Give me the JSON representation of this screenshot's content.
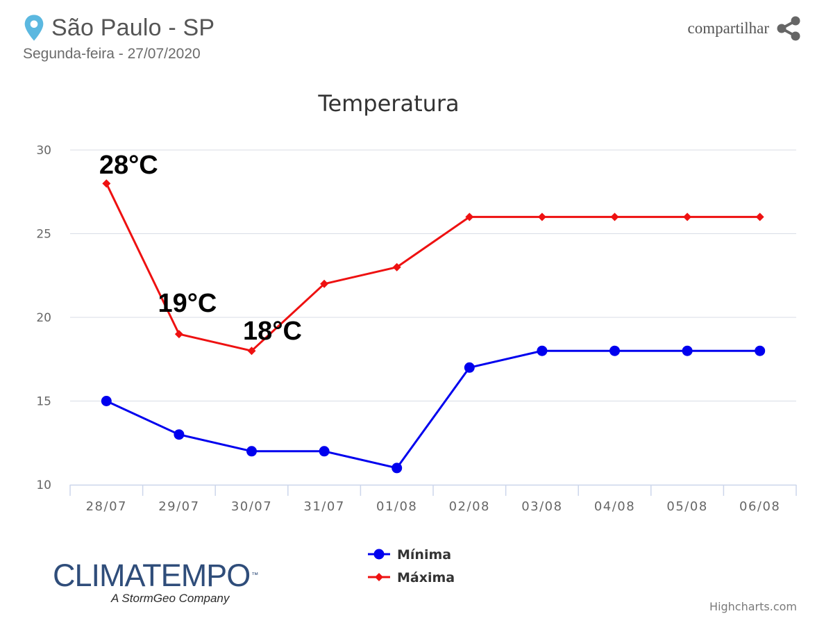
{
  "header": {
    "location": "São Paulo - SP",
    "date": "Segunda-feira - 27/07/2020",
    "pin_icon": "location-pin-icon"
  },
  "share": {
    "label": "compartilhar",
    "icon": "share-icon"
  },
  "chart_data": {
    "type": "line",
    "title": "Temperatura",
    "categories": [
      "28/07",
      "29/07",
      "30/07",
      "31/07",
      "01/08",
      "02/08",
      "03/08",
      "04/08",
      "05/08",
      "06/08"
    ],
    "ylim": [
      10,
      30
    ],
    "yticks": [
      "10",
      "15",
      "20",
      "25",
      "30"
    ],
    "grid": true,
    "legend_placement": "bottom-center",
    "series": [
      {
        "name": "Mínima",
        "color": "#0000ee",
        "marker": "circle",
        "values": [
          15,
          13,
          12,
          12,
          11,
          17,
          18,
          18,
          18,
          18
        ]
      },
      {
        "name": "Máxima",
        "color": "#ee1111",
        "marker": "diamond",
        "values": [
          28,
          19,
          18,
          22,
          23,
          26,
          26,
          26,
          26,
          26
        ]
      }
    ],
    "annotations": [
      {
        "series": 1,
        "index": 0,
        "text": "28°C"
      },
      {
        "series": 1,
        "index": 1,
        "text": "19°C"
      },
      {
        "series": 1,
        "index": 2,
        "text": "18°C"
      }
    ]
  },
  "branding": {
    "logo_text": "CLIMATEMPO",
    "logo_tm": "™",
    "tagline": "A StormGeo Company"
  },
  "credits": "Highcharts.com"
}
